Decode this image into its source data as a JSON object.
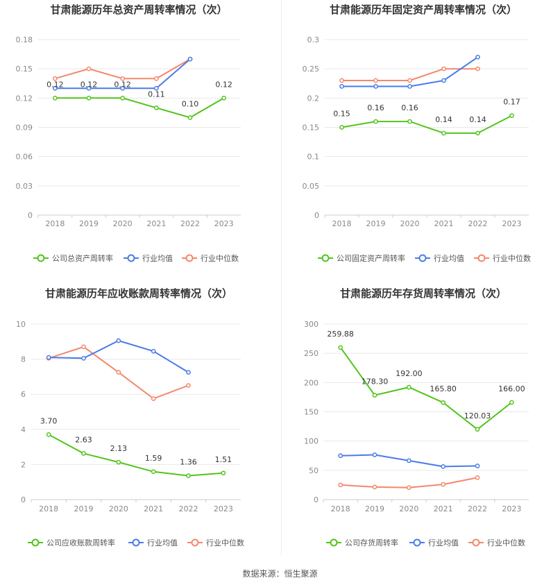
{
  "chart_data": [
    {
      "type": "line",
      "title": "甘肃能源历年总资产周转率情况（次）",
      "categories": [
        "2018",
        "2019",
        "2020",
        "2021",
        "2022",
        "2023"
      ],
      "y_ticks": [
        "0",
        "0.03",
        "0.06",
        "0.09",
        "0.12",
        "0.15",
        "0.18"
      ],
      "ylim": [
        0,
        0.18
      ],
      "grid": true,
      "legend_position": "bottom",
      "series": [
        {
          "name": "公司总资产周转率",
          "color": "#52c41a",
          "values": [
            0.12,
            0.12,
            0.12,
            0.11,
            0.1,
            0.12
          ],
          "labels": [
            "0.12",
            "0.12",
            "0.12",
            "0.11",
            "0.10",
            "0.12"
          ]
        },
        {
          "name": "行业均值",
          "color": "#4a7be8",
          "values": [
            0.13,
            0.13,
            0.13,
            0.13,
            0.16,
            null
          ]
        },
        {
          "name": "行业中位数",
          "color": "#f4876a",
          "values": [
            0.14,
            0.15,
            0.14,
            0.14,
            0.16,
            null
          ]
        }
      ]
    },
    {
      "type": "line",
      "title": "甘肃能源历年固定资产周转率情况（次）",
      "categories": [
        "2018",
        "2019",
        "2020",
        "2021",
        "2022",
        "2023"
      ],
      "y_ticks": [
        "0",
        "0.05",
        "0.1",
        "0.15",
        "0.2",
        "0.25",
        "0.3"
      ],
      "ylim": [
        0,
        0.3
      ],
      "grid": true,
      "legend_position": "bottom",
      "series": [
        {
          "name": "公司固定资产周转率",
          "color": "#52c41a",
          "values": [
            0.15,
            0.16,
            0.16,
            0.14,
            0.14,
            0.17
          ],
          "labels": [
            "0.15",
            "0.16",
            "0.16",
            "0.14",
            "0.14",
            "0.17"
          ]
        },
        {
          "name": "行业均值",
          "color": "#4a7be8",
          "values": [
            0.22,
            0.22,
            0.22,
            0.23,
            0.27,
            null
          ]
        },
        {
          "name": "行业中位数",
          "color": "#f4876a",
          "values": [
            0.23,
            0.23,
            0.23,
            0.25,
            0.25,
            null
          ]
        }
      ]
    },
    {
      "type": "line",
      "title": "甘肃能源历年应收账款周转率情况（次）",
      "categories": [
        "2018",
        "2019",
        "2020",
        "2021",
        "2022",
        "2023"
      ],
      "y_ticks": [
        "0",
        "2",
        "4",
        "6",
        "8",
        "10"
      ],
      "ylim": [
        0,
        10
      ],
      "grid": true,
      "legend_position": "bottom",
      "series": [
        {
          "name": "公司应收账款周转率",
          "color": "#52c41a",
          "values": [
            3.7,
            2.63,
            2.13,
            1.59,
            1.36,
            1.51
          ],
          "labels": [
            "3.70",
            "2.63",
            "2.13",
            "1.59",
            "1.36",
            "1.51"
          ]
        },
        {
          "name": "行业均值",
          "color": "#4a7be8",
          "values": [
            8.1,
            8.05,
            9.05,
            8.45,
            7.25,
            null
          ]
        },
        {
          "name": "行业中位数",
          "color": "#f4876a",
          "values": [
            8.05,
            8.7,
            7.25,
            5.75,
            6.5,
            null
          ]
        }
      ]
    },
    {
      "type": "line",
      "title": "甘肃能源历年存货周转率情况（次）",
      "categories": [
        "2018",
        "2019",
        "2020",
        "2021",
        "2022",
        "2023"
      ],
      "y_ticks": [
        "0",
        "50",
        "100",
        "150",
        "200",
        "250",
        "300"
      ],
      "ylim": [
        0,
        300
      ],
      "grid": true,
      "legend_position": "bottom",
      "series": [
        {
          "name": "公司存货周转率",
          "color": "#52c41a",
          "values": [
            259.88,
            178.3,
            192.0,
            165.8,
            120.03,
            166.0
          ],
          "labels": [
            "259.88",
            "178.30",
            "192.00",
            "165.80",
            "120.03",
            "166.00"
          ]
        },
        {
          "name": "行业均值",
          "color": "#4a7be8",
          "values": [
            75,
            76.5,
            66.5,
            56.5,
            57.5,
            null
          ]
        },
        {
          "name": "行业中位数",
          "color": "#f4876a",
          "values": [
            25,
            21.5,
            20.5,
            26,
            37.5,
            null
          ]
        }
      ]
    }
  ],
  "footer": {
    "source": "数据来源：恒生聚源"
  }
}
